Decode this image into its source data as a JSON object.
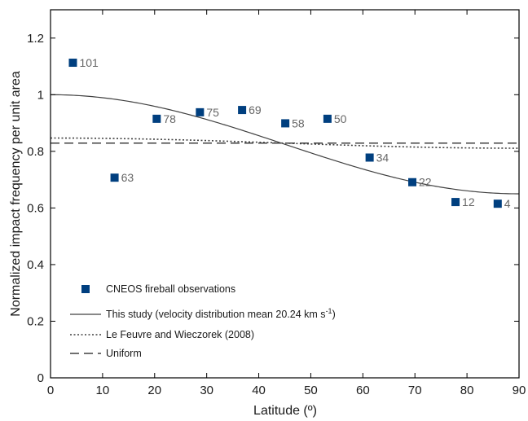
{
  "chart_data": {
    "type": "scatter",
    "xlabel": "Latitude (º)",
    "ylabel": "Normalized impact frequency per unit area",
    "xlim": [
      0,
      90
    ],
    "ylim": [
      0,
      1.3
    ],
    "xticks": [
      0,
      10,
      20,
      30,
      40,
      50,
      60,
      70,
      80,
      90
    ],
    "yticks": [
      0,
      0.2,
      0.4,
      0.6,
      0.8,
      1,
      1.2
    ],
    "xtick_labels": [
      "0",
      "10",
      "20",
      "30",
      "40",
      "50",
      "60",
      "70",
      "80",
      "90"
    ],
    "ytick_labels": [
      "0",
      "0.2",
      "0.4",
      "0.6",
      "0.8",
      "1",
      "1.2"
    ],
    "grid": false,
    "legend_position": "bottom-left",
    "observations": {
      "name": "CNEOS fireball observations",
      "color": "#003f7f",
      "points": [
        {
          "x": 4.3,
          "y": 1.113,
          "label": "101"
        },
        {
          "x": 12.3,
          "y": 0.707,
          "label": "63"
        },
        {
          "x": 20.4,
          "y": 0.915,
          "label": "78"
        },
        {
          "x": 28.7,
          "y": 0.938,
          "label": "75"
        },
        {
          "x": 36.8,
          "y": 0.946,
          "label": "69"
        },
        {
          "x": 45.1,
          "y": 0.899,
          "label": "58"
        },
        {
          "x": 53.2,
          "y": 0.915,
          "label": "50"
        },
        {
          "x": 61.3,
          "y": 0.778,
          "label": "34"
        },
        {
          "x": 69.5,
          "y": 0.691,
          "label": "22"
        },
        {
          "x": 77.8,
          "y": 0.621,
          "label": "12"
        },
        {
          "x": 85.9,
          "y": 0.615,
          "label": "4"
        }
      ]
    },
    "lines": [
      {
        "name": "This study (velocity distribution mean 20.24 km s",
        "name_superscript": "-1",
        "name_suffix": ")",
        "style": "solid",
        "color": "#404040",
        "model": {
          "form": "a + b*cos(2*lat)",
          "a": 0.825,
          "b": 0.175
        }
      },
      {
        "name": "Le Feuvre and Wieczorek (2008)",
        "style": "dotted",
        "color": "#404040",
        "model": {
          "form": "a + b*cos(2*lat)",
          "a": 0.829,
          "b": 0.018
        }
      },
      {
        "name": "Uniform",
        "style": "dashed",
        "color": "#404040",
        "model": {
          "form": "constant",
          "a": 0.829,
          "b": 0
        }
      }
    ]
  }
}
